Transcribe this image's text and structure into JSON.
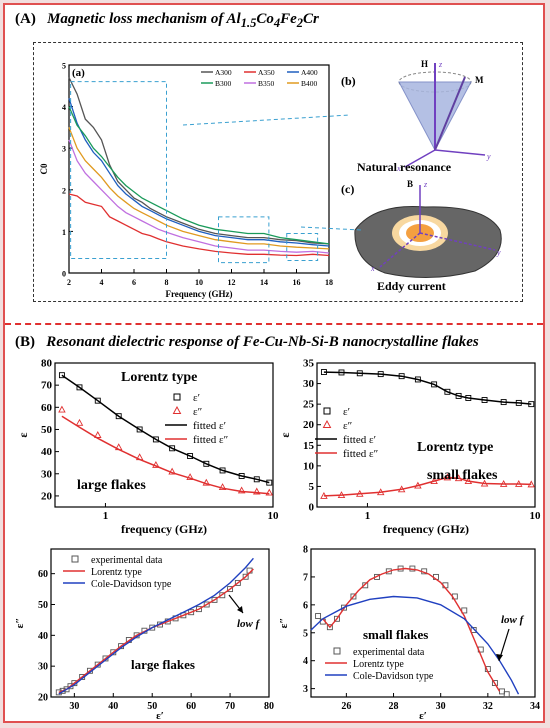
{
  "panelA": {
    "label": "(A)",
    "title": "Magnetic loss mechanism of Al",
    "title_sub1": "1.5",
    "title_mid1": "Co",
    "title_sub2": "4",
    "title_mid2": "Fe",
    "title_sub3": "2",
    "title_end": "Cr",
    "sub_a": "(a)",
    "sub_b": "(b)",
    "sub_c": "(c)",
    "natural_resonance": "Natural resonance",
    "eddy_current": "Eddy current",
    "axis_H": "H",
    "axis_M": "M",
    "axis_B": "B",
    "axis_x": "x",
    "axis_y": "y",
    "axis_z": "z"
  },
  "panelB": {
    "label": "(B)",
    "title": "Resonant dielectric response of Fe-Cu-Nb-Si-B nanocrystalline flakes"
  },
  "chart_data": [
    {
      "id": "c0",
      "type": "line",
      "xlabel": "Frequency (GHz)",
      "ylabel": "C0",
      "xlim": [
        2,
        18
      ],
      "ylim": [
        0,
        5
      ],
      "xticks": [
        2,
        4,
        6,
        8,
        10,
        12,
        14,
        16,
        18
      ],
      "yticks": [
        0,
        1,
        2,
        3,
        4,
        5
      ],
      "legend": "top-right",
      "series": [
        {
          "name": "A300",
          "color": "#555555",
          "x": [
            2,
            2.5,
            3,
            3.5,
            4,
            4.5,
            5,
            5.5,
            6,
            6.5,
            7,
            7.5,
            8,
            9,
            10,
            11,
            12,
            13,
            14,
            15,
            16,
            17,
            18
          ],
          "y": [
            4.7,
            4.3,
            3.7,
            3.5,
            3.2,
            2.6,
            2.2,
            2.0,
            1.8,
            1.7,
            1.55,
            1.45,
            1.35,
            1.2,
            1.05,
            0.95,
            0.9,
            0.85,
            0.85,
            0.8,
            0.78,
            0.72,
            0.7
          ]
        },
        {
          "name": "A350",
          "color": "#e03030",
          "x": [
            2,
            2.5,
            3,
            3.5,
            4,
            4.5,
            5,
            5.5,
            6,
            6.5,
            7,
            7.5,
            8,
            9,
            10,
            11,
            12,
            13,
            14,
            15,
            16,
            17,
            18
          ],
          "y": [
            1.9,
            1.85,
            1.7,
            1.65,
            1.6,
            1.35,
            1.25,
            1.15,
            1.05,
            0.95,
            0.9,
            0.82,
            0.75,
            0.65,
            0.58,
            0.52,
            0.48,
            0.45,
            0.45,
            0.43,
            0.42,
            0.45,
            0.42
          ]
        },
        {
          "name": "A400",
          "color": "#1f5fbf",
          "x": [
            2,
            2.5,
            3,
            3.5,
            4,
            4.5,
            5,
            5.5,
            6,
            6.5,
            7,
            7.5,
            8,
            9,
            10,
            11,
            12,
            13,
            14,
            15,
            16,
            17,
            18
          ],
          "y": [
            4.2,
            3.6,
            3.2,
            2.9,
            2.7,
            2.4,
            2.1,
            1.9,
            1.75,
            1.6,
            1.5,
            1.4,
            1.3,
            1.15,
            1.0,
            0.9,
            0.85,
            0.8,
            0.8,
            0.75,
            0.72,
            0.68,
            0.65
          ]
        },
        {
          "name": "B300",
          "color": "#1a9a5a",
          "x": [
            2,
            2.5,
            3,
            3.5,
            4,
            4.5,
            5,
            5.5,
            6,
            6.5,
            7,
            7.5,
            8,
            9,
            10,
            11,
            12,
            13,
            14,
            15,
            16,
            17,
            18
          ],
          "y": [
            4.0,
            3.55,
            3.3,
            3.0,
            2.8,
            2.55,
            2.3,
            2.1,
            1.95,
            1.8,
            1.7,
            1.6,
            1.5,
            1.3,
            1.15,
            1.05,
            1.0,
            0.95,
            0.95,
            0.85,
            0.8,
            0.75,
            0.7
          ]
        },
        {
          "name": "B350",
          "color": "#c070e0",
          "x": [
            2,
            2.5,
            3,
            3.5,
            4,
            4.5,
            5,
            5.5,
            6,
            6.5,
            7,
            7.5,
            8,
            9,
            10,
            11,
            12,
            13,
            14,
            15,
            16,
            17,
            18
          ],
          "y": [
            3.2,
            2.7,
            2.4,
            2.2,
            2.0,
            1.8,
            1.6,
            1.45,
            1.35,
            1.25,
            1.15,
            1.05,
            0.98,
            0.85,
            0.75,
            0.65,
            0.6,
            0.55,
            0.55,
            0.52,
            0.5,
            0.52,
            0.48
          ]
        },
        {
          "name": "B400",
          "color": "#e09a20",
          "x": [
            2,
            2.5,
            3,
            3.5,
            4,
            4.5,
            5,
            5.5,
            6,
            6.5,
            7,
            7.5,
            8,
            9,
            10,
            11,
            12,
            13,
            14,
            15,
            16,
            17,
            18
          ],
          "y": [
            3.5,
            3.0,
            2.7,
            2.5,
            2.3,
            2.05,
            1.85,
            1.7,
            1.55,
            1.45,
            1.35,
            1.25,
            1.15,
            1.0,
            0.9,
            0.8,
            0.75,
            0.7,
            0.7,
            0.65,
            0.62,
            0.6,
            0.58
          ]
        }
      ]
    },
    {
      "id": "large_eps",
      "type": "line",
      "xlabel": "frequency (GHz)",
      "ylabel": "ε",
      "xscale": "log",
      "xlim": [
        0.5,
        10
      ],
      "ylim": [
        15,
        80
      ],
      "xticks": [
        1,
        10
      ],
      "yticks": [
        20,
        30,
        40,
        50,
        60,
        70,
        80
      ],
      "legend_title": "Lorentz type",
      "annotation": "large flakes",
      "series": [
        {
          "name": "ε′",
          "marker": "square",
          "color": "#000000",
          "x": [
            0.55,
            0.7,
            0.9,
            1.2,
            1.6,
            2,
            2.5,
            3.2,
            4,
            5,
            6.5,
            8,
            9.5
          ],
          "y": [
            74.5,
            69,
            63,
            56,
            50,
            45.5,
            41.5,
            38,
            34.5,
            31.5,
            29,
            27.5,
            26
          ]
        },
        {
          "name": "ε″",
          "marker": "triangle",
          "color": "#e03030",
          "x": [
            0.55,
            0.7,
            0.9,
            1.2,
            1.6,
            2,
            2.5,
            3.2,
            4,
            5,
            6.5,
            8,
            9.5
          ],
          "y": [
            59,
            53,
            47.5,
            42,
            37.5,
            34,
            31,
            28.5,
            26,
            24,
            22.5,
            22,
            21.5
          ]
        },
        {
          "name": "fitted ε′",
          "line": true,
          "color": "#000000",
          "x": [
            0.55,
            0.7,
            0.9,
            1.2,
            1.6,
            2,
            2.5,
            3.2,
            4,
            5,
            6.5,
            8,
            9.5
          ],
          "y": [
            74.5,
            69,
            63,
            56,
            50,
            45.5,
            41.5,
            38,
            34.5,
            31.5,
            29,
            27.5,
            26
          ]
        },
        {
          "name": "fitted ε″",
          "line": true,
          "color": "#e03030",
          "x": [
            0.55,
            0.7,
            0.9,
            1.2,
            1.6,
            2,
            2.5,
            3.2,
            4,
            5,
            6.5,
            8,
            9.5
          ],
          "y": [
            56,
            51,
            46,
            41,
            36.5,
            33.5,
            30.5,
            28,
            25.5,
            23.5,
            22,
            21.5,
            21
          ]
        }
      ]
    },
    {
      "id": "small_eps",
      "type": "line",
      "xlabel": "frequency (GHz)",
      "ylabel": "ε",
      "xscale": "log",
      "xlim": [
        0.5,
        10
      ],
      "ylim": [
        0,
        35
      ],
      "xticks": [
        1,
        10
      ],
      "yticks": [
        0,
        5,
        10,
        15,
        20,
        25,
        30,
        35
      ],
      "legend_title": "Lorentz type",
      "annotation": "small flakes",
      "series": [
        {
          "name": "ε′",
          "marker": "square",
          "color": "#000000",
          "x": [
            0.55,
            0.7,
            0.9,
            1.2,
            1.6,
            2,
            2.5,
            3,
            3.5,
            4,
            5,
            6.5,
            8,
            9.5
          ],
          "y": [
            32.8,
            32.7,
            32.5,
            32.3,
            31.8,
            31,
            29.8,
            28,
            27,
            26.5,
            26,
            25.5,
            25.3,
            25
          ]
        },
        {
          "name": "ε″",
          "marker": "triangle",
          "color": "#e03030",
          "x": [
            0.55,
            0.7,
            0.9,
            1.2,
            1.6,
            2,
            2.5,
            3,
            3.5,
            4,
            5,
            6.5,
            8,
            9.5
          ],
          "y": [
            2.7,
            2.9,
            3.2,
            3.6,
            4.3,
            5.2,
            6.3,
            7.2,
            7.0,
            6.3,
            5.7,
            5.6,
            5.6,
            5.5
          ]
        },
        {
          "name": "fitted ε′",
          "line": true,
          "color": "#000000",
          "x": [
            0.55,
            0.7,
            0.9,
            1.2,
            1.6,
            2,
            2.5,
            3,
            3.5,
            4,
            5,
            6.5,
            8,
            9.5
          ],
          "y": [
            32.8,
            32.7,
            32.5,
            32.3,
            31.8,
            31,
            29.8,
            28,
            27,
            26.5,
            26,
            25.5,
            25.3,
            25
          ]
        },
        {
          "name": "fitted ε″",
          "line": true,
          "color": "#e03030",
          "x": [
            0.55,
            0.7,
            0.9,
            1.2,
            1.6,
            2,
            2.5,
            3,
            3.5,
            4,
            5,
            6.5,
            8,
            9.5
          ],
          "y": [
            2.7,
            2.9,
            3.2,
            3.6,
            4.3,
            5.2,
            6.3,
            7.2,
            7.0,
            6.3,
            5.7,
            5.6,
            5.6,
            5.5
          ]
        }
      ]
    },
    {
      "id": "cole_large",
      "type": "scatter",
      "xlabel": "ε′",
      "ylabel": "ε″",
      "xlim": [
        24,
        80
      ],
      "ylim": [
        20,
        68
      ],
      "xticks": [
        30,
        40,
        50,
        60,
        70,
        80
      ],
      "yticks": [
        20,
        30,
        40,
        50,
        60
      ],
      "annotation": "large flakes",
      "arrow_label": "low f",
      "series": [
        {
          "name": "experimental data",
          "marker": "square",
          "color": "#555555",
          "x": [
            26,
            27,
            28,
            29,
            30,
            32,
            34,
            36,
            38,
            40,
            42,
            44,
            46,
            48,
            50,
            52,
            54,
            56,
            58,
            60,
            62,
            64,
            66,
            68,
            70,
            72,
            74,
            75
          ],
          "y": [
            21.5,
            22,
            22.5,
            23.5,
            24.5,
            26.5,
            28.5,
            30.5,
            32.5,
            34.5,
            36.5,
            38.5,
            40,
            41.5,
            42.5,
            43.5,
            44.5,
            45.5,
            46.5,
            47.5,
            48.5,
            50,
            51.5,
            53,
            55,
            57,
            59,
            61
          ]
        },
        {
          "name": "Lorentz type",
          "line": true,
          "color": "#e03030",
          "x": [
            26,
            28,
            30,
            34,
            38,
            42,
            46,
            50,
            54,
            58,
            62,
            66,
            70,
            74,
            76
          ],
          "y": [
            21.5,
            22.5,
            24.5,
            28.5,
            32.5,
            36.5,
            40,
            42.5,
            44.5,
            46.5,
            48.5,
            51.5,
            55,
            59,
            61.5
          ]
        },
        {
          "name": "Cole-Davidson type",
          "line": true,
          "color": "#2040c0",
          "x": [
            26,
            28,
            30,
            34,
            38,
            42,
            46,
            50,
            54,
            58,
            62,
            66,
            70,
            74,
            76
          ],
          "y": [
            21,
            22.5,
            24,
            28,
            32,
            36,
            39.5,
            42.5,
            45,
            47.5,
            50,
            53,
            57,
            62,
            65
          ]
        }
      ]
    },
    {
      "id": "cole_small",
      "type": "scatter",
      "xlabel": "ε′",
      "ylabel": "ε″",
      "xlim": [
        24.5,
        34
      ],
      "ylim": [
        2.7,
        8
      ],
      "xticks": [
        26,
        28,
        30,
        32,
        34
      ],
      "yticks": [
        3,
        4,
        5,
        6,
        7,
        8
      ],
      "annotation": "small flakes",
      "arrow_label": "low f",
      "series": [
        {
          "name": "experimental data",
          "marker": "square",
          "color": "#555555",
          "x": [
            24.8,
            25.0,
            25.3,
            25.6,
            25.9,
            26.3,
            26.8,
            27.3,
            27.8,
            28.3,
            28.8,
            29.3,
            29.8,
            30.2,
            30.6,
            31.0,
            31.4,
            31.7,
            32.0,
            32.3,
            32.6,
            32.8
          ],
          "y": [
            5.6,
            5.4,
            5.2,
            5.5,
            5.9,
            6.3,
            6.7,
            7.0,
            7.2,
            7.3,
            7.3,
            7.2,
            7.0,
            6.7,
            6.3,
            5.8,
            5.1,
            4.4,
            3.7,
            3.2,
            2.9,
            2.8
          ]
        },
        {
          "name": "Lorentz type",
          "line": true,
          "color": "#e03030",
          "x": [
            25.0,
            25.3,
            25.6,
            26.0,
            26.5,
            27.0,
            27.5,
            28.0,
            28.5,
            29.0,
            29.5,
            30.0,
            30.5,
            31.0,
            31.5,
            32.0,
            32.5
          ],
          "y": [
            5.5,
            5.2,
            5.5,
            6.0,
            6.5,
            6.9,
            7.1,
            7.25,
            7.3,
            7.25,
            7.1,
            6.8,
            6.3,
            5.6,
            4.6,
            3.6,
            2.9
          ]
        },
        {
          "name": "Cole-Davidson type",
          "line": true,
          "color": "#2040c0",
          "x": [
            24.5,
            25.0,
            26.0,
            27.0,
            28.0,
            29.0,
            30.0,
            31.0,
            32.0,
            32.5,
            33.0,
            33.3
          ],
          "y": [
            5.1,
            5.5,
            5.95,
            6.2,
            6.3,
            6.25,
            6.0,
            5.5,
            4.6,
            4.0,
            3.3,
            2.8
          ]
        }
      ]
    }
  ]
}
